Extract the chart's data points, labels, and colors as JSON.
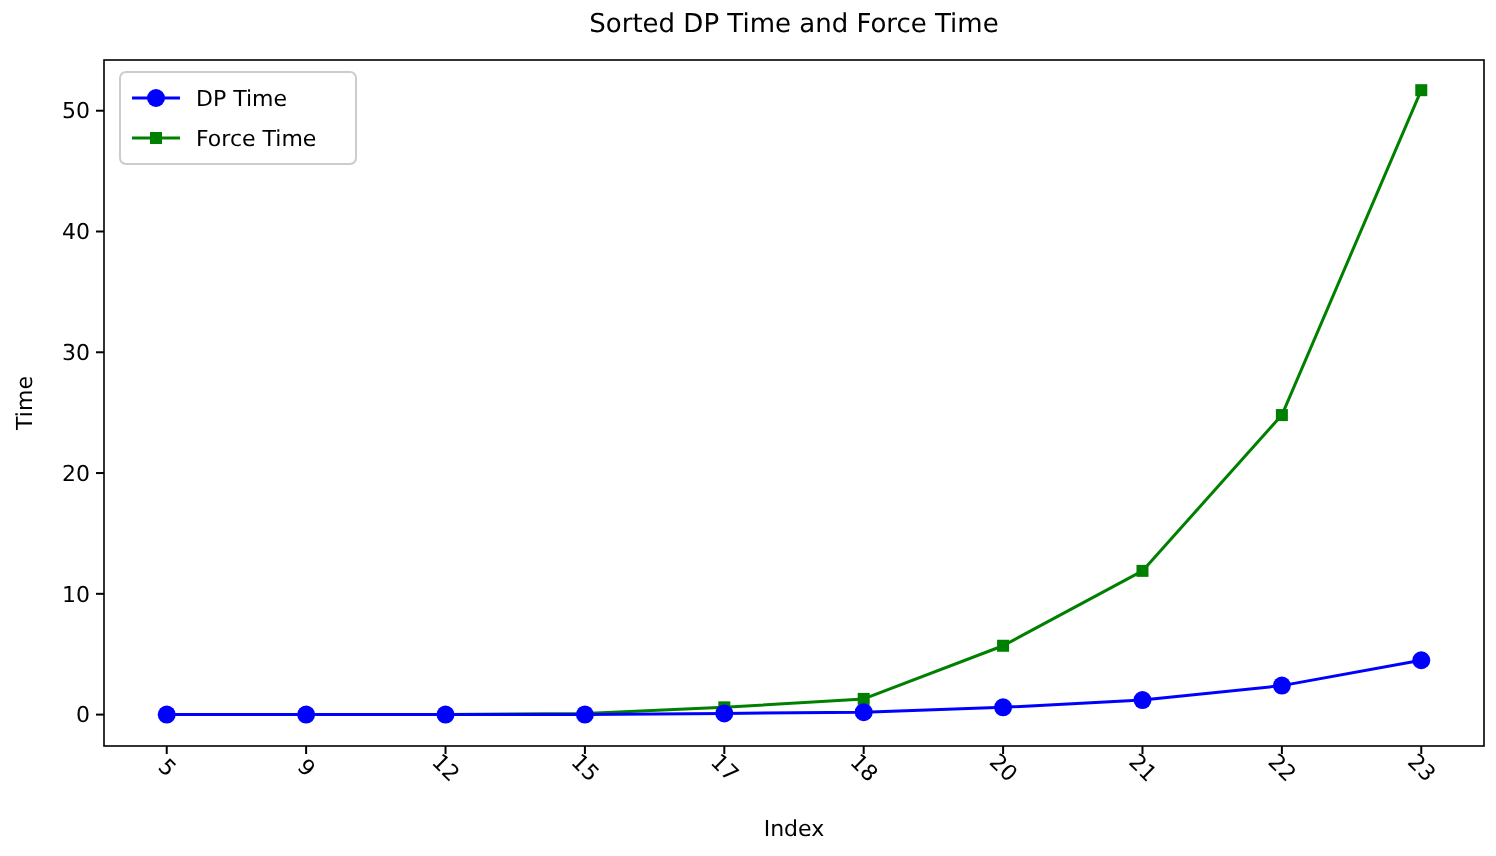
{
  "chart_data": {
    "type": "line",
    "title": "Sorted DP Time and Force Time",
    "xlabel": "Index",
    "ylabel": "Time",
    "categories": [
      "5",
      "9",
      "12",
      "15",
      "17",
      "18",
      "20",
      "21",
      "22",
      "23"
    ],
    "series": [
      {
        "name": "DP Time",
        "color": "#0000ff",
        "marker": "circle",
        "values": [
          0,
          0,
          0,
          0,
          0.1,
          0.2,
          0.6,
          1.2,
          2.4,
          4.5
        ]
      },
      {
        "name": "Force Time",
        "color": "#008000",
        "marker": "square",
        "values": [
          0,
          0,
          0,
          0.1,
          0.6,
          1.3,
          5.7,
          11.9,
          24.8,
          51.7
        ]
      }
    ],
    "ylim": [
      -2.6,
      54.2
    ],
    "yticks": [
      0,
      10,
      20,
      30,
      40,
      50
    ],
    "legend": "top left",
    "grid": false,
    "line_style": "solid"
  }
}
